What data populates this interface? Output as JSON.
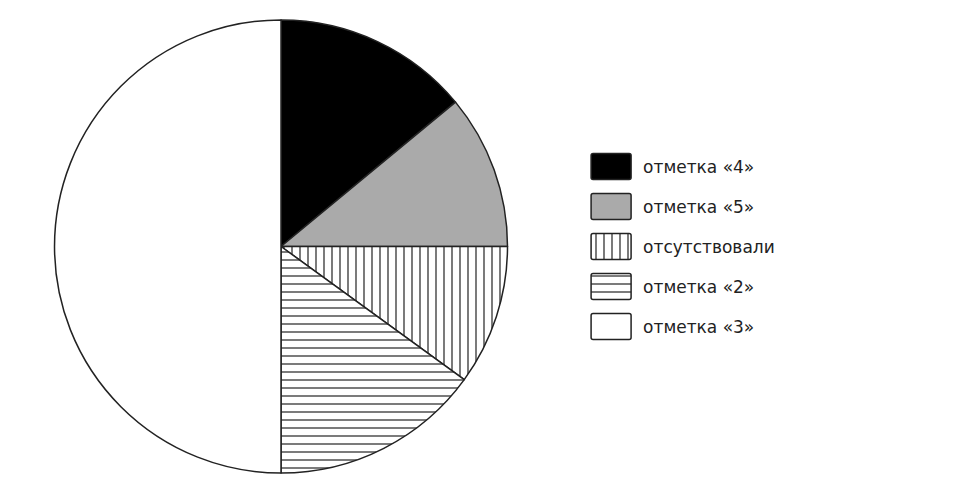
{
  "chart_data": {
    "type": "pie",
    "categories": [
      "отметка «4»",
      "отметка «5»",
      "отсутствовали",
      "отметка «2»",
      "отметка «3»"
    ],
    "values": [
      14,
      11,
      10,
      15,
      50
    ],
    "colors": [
      "#000000",
      "#aaaaaa",
      "#ffffff",
      "#ffffff",
      "#ffffff"
    ],
    "legend": "right"
  }
}
